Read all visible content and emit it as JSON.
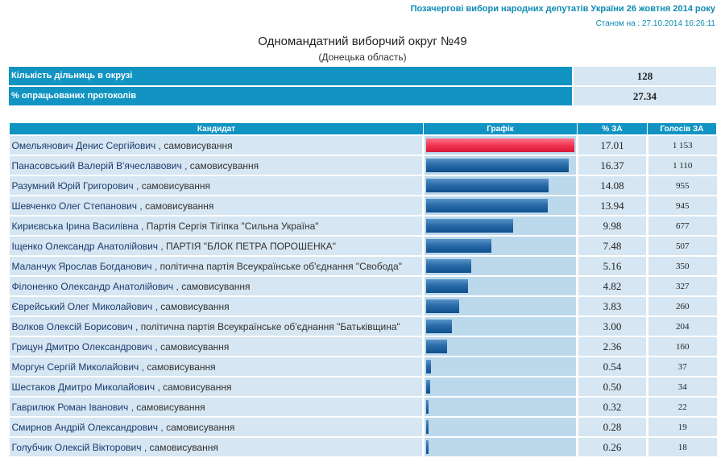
{
  "header": {
    "election_title": "Позачергові вибори народних депутатів України 26 жовтня 2014 року",
    "status_time": "Станом на : 27.10.2014 16:26:11"
  },
  "district": {
    "title": "Одномандатний виборчий округ №49",
    "region": "(Донецька область)"
  },
  "summary": [
    {
      "label": "Кількість дільниць в окрузі",
      "value": "128"
    },
    {
      "label": "% опрацьованих протоколів",
      "value": "27.34"
    }
  ],
  "table": {
    "headers": [
      "Кандидат",
      "Графік",
      "% ЗА",
      "Голосів ЗА"
    ],
    "max_pct": 17.01,
    "rows": [
      {
        "name": "Омельянович Денис Сергійович",
        "party": "самовисування",
        "pct": "17.01",
        "votes": "1 153",
        "lead": true
      },
      {
        "name": "Панасовський Валерій В'ячеславович",
        "party": "самовисування",
        "pct": "16.37",
        "votes": "1 110"
      },
      {
        "name": "Разумний Юрій Григорович",
        "party": "самовисування",
        "pct": "14.08",
        "votes": "955"
      },
      {
        "name": "Шевченко Олег Степанович",
        "party": "самовисування",
        "pct": "13.94",
        "votes": "945"
      },
      {
        "name": "Кириєвська Ірина Василівна",
        "party": "Партія Сергія Тігіпка \"Сильна Україна\"",
        "pct": "9.98",
        "votes": "677"
      },
      {
        "name": "Іщенко Олександр Анатолійович",
        "party": "ПАРТІЯ \"БЛОК ПЕТРА ПОРОШЕНКА\"",
        "pct": "7.48",
        "votes": "507"
      },
      {
        "name": "Маланчук Ярослав Богданович",
        "party": "політична партія Всеукраїнське об'єднання \"Свобода\"",
        "pct": "5.16",
        "votes": "350"
      },
      {
        "name": "Філоненко Олександр Анатолійович",
        "party": "самовисування",
        "pct": "4.82",
        "votes": "327"
      },
      {
        "name": "Єврейський Олег Миколайович",
        "party": "самовисування",
        "pct": "3.83",
        "votes": "260"
      },
      {
        "name": "Волков Олексій Борисович",
        "party": "політична партія Всеукраїнське об'єднання \"Батьківщина\"",
        "pct": "3.00",
        "votes": "204"
      },
      {
        "name": "Грицун Дмитро Олександрович",
        "party": "самовисування",
        "pct": "2.36",
        "votes": "160"
      },
      {
        "name": "Моргун Сергій Миколайович",
        "party": "самовисування",
        "pct": "0.54",
        "votes": "37"
      },
      {
        "name": "Шестаков Дмитро Миколайович",
        "party": "самовисування",
        "pct": "0.50",
        "votes": "34"
      },
      {
        "name": "Гаврилюк Роман Іванович",
        "party": "самовисування",
        "pct": "0.32",
        "votes": "22"
      },
      {
        "name": "Смирнов Андрій Олександрович",
        "party": "самовисування",
        "pct": "0.28",
        "votes": "19"
      },
      {
        "name": "Голубчик Олексій Вікторович",
        "party": "самовисування",
        "pct": "0.26",
        "votes": "18"
      }
    ]
  },
  "colors": {
    "header_blue": "#1294c2",
    "cell_bg": "#d6e6f2",
    "lead_bar": "#f0304e",
    "bar": "#1f5f9f"
  }
}
